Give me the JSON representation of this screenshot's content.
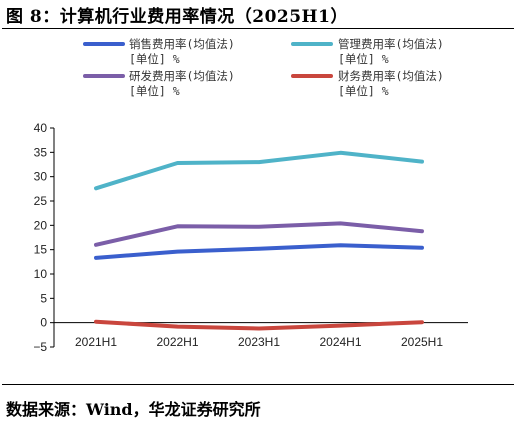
{
  "figure": {
    "title": "图 8：计算机行业费用率情况（2025H1）",
    "source": "数据来源：Wind，华龙证券研究所"
  },
  "chart_data": {
    "type": "line",
    "x": [
      "2021H1",
      "2022H1",
      "2023H1",
      "2024H1",
      "2025H1"
    ],
    "ylim": [
      -5,
      40
    ],
    "yticks": [
      -5,
      0,
      5,
      10,
      15,
      20,
      25,
      30,
      35,
      40
    ],
    "grid": false,
    "legend_position": "top",
    "series": [
      {
        "name": "销售费用率(均值法)",
        "unit": "[单位] %",
        "color": "#3a5fcd",
        "values": [
          13.3,
          14.6,
          15.2,
          15.9,
          15.4
        ]
      },
      {
        "name": "管理费用率(均值法)",
        "unit": "[单位] %",
        "color": "#4fb3c8",
        "values": [
          27.6,
          32.8,
          33.0,
          34.9,
          33.1
        ]
      },
      {
        "name": "研发费用率(均值法)",
        "unit": "[单位] %",
        "color": "#7b5ea8",
        "values": [
          16.0,
          19.8,
          19.7,
          20.4,
          18.8
        ]
      },
      {
        "name": "财务费用率(均值法)",
        "unit": "[单位] %",
        "color": "#c9463d",
        "values": [
          0.2,
          -0.8,
          -1.2,
          -0.6,
          0.1
        ]
      }
    ]
  }
}
